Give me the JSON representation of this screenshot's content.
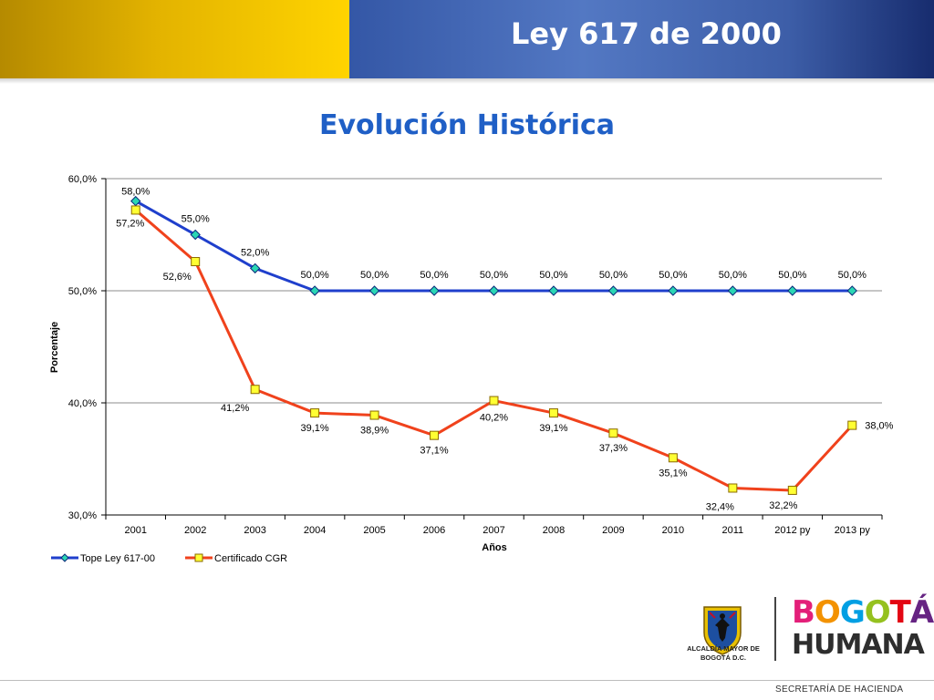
{
  "header": {
    "title": "Ley 617 de 2000"
  },
  "chart_data": {
    "type": "line",
    "title": "Evolución Histórica",
    "xlabel": "Años",
    "ylabel": "Porcentaje",
    "ylim": [
      30,
      60
    ],
    "yticks": [
      "60,0%",
      "50,0%",
      "40,0%",
      "30,0%"
    ],
    "categories": [
      "2001",
      "2002",
      "2003",
      "2004",
      "2005",
      "2006",
      "2007",
      "2008",
      "2009",
      "2010",
      "2011",
      "2012 py",
      "2013 py"
    ],
    "grid": "horizontal",
    "legend_position": "bottom-left",
    "series": [
      {
        "name": "Tope Ley 617-00",
        "color": "#1f3fcc",
        "marker": "diamond",
        "marker_color": "#2ad6b4",
        "values": [
          58.0,
          55.0,
          52.0,
          50.0,
          50.0,
          50.0,
          50.0,
          50.0,
          50.0,
          50.0,
          50.0,
          50.0,
          50.0
        ],
        "labels": [
          "58,0%",
          "55,0%",
          "52,0%",
          "50,0%",
          "50,0%",
          "50,0%",
          "50,0%",
          "50,0%",
          "50,0%",
          "50,0%",
          "50,0%",
          "50,0%",
          "50,0%"
        ]
      },
      {
        "name": "Certificado CGR",
        "color": "#f0421c",
        "marker": "square",
        "marker_color": "#ffff33",
        "values": [
          57.2,
          52.6,
          41.2,
          39.1,
          38.9,
          37.1,
          40.2,
          39.1,
          37.3,
          35.1,
          32.4,
          32.2,
          38.0
        ],
        "labels": [
          "57,2%",
          "52,6%",
          "41,2%",
          "39,1%",
          "38,9%",
          "37,1%",
          "40,2%",
          "39,1%",
          "37,3%",
          "35,1%",
          "32,4%",
          "32,2%",
          "38,0%"
        ]
      }
    ]
  },
  "logos": {
    "alcaldia": "ALCALDÍA MAYOR DE BOGOTÁ D.C.",
    "bogota_top": "BOGOTÁ",
    "bogota_bottom": "HUMANA",
    "bogota_letter_colors": [
      "#e31f79",
      "#f39200",
      "#009fe3",
      "#95c11f",
      "#e30613",
      "#662483"
    ]
  },
  "footer": {
    "text": "SECRETARÍA DE HACIENDA"
  }
}
